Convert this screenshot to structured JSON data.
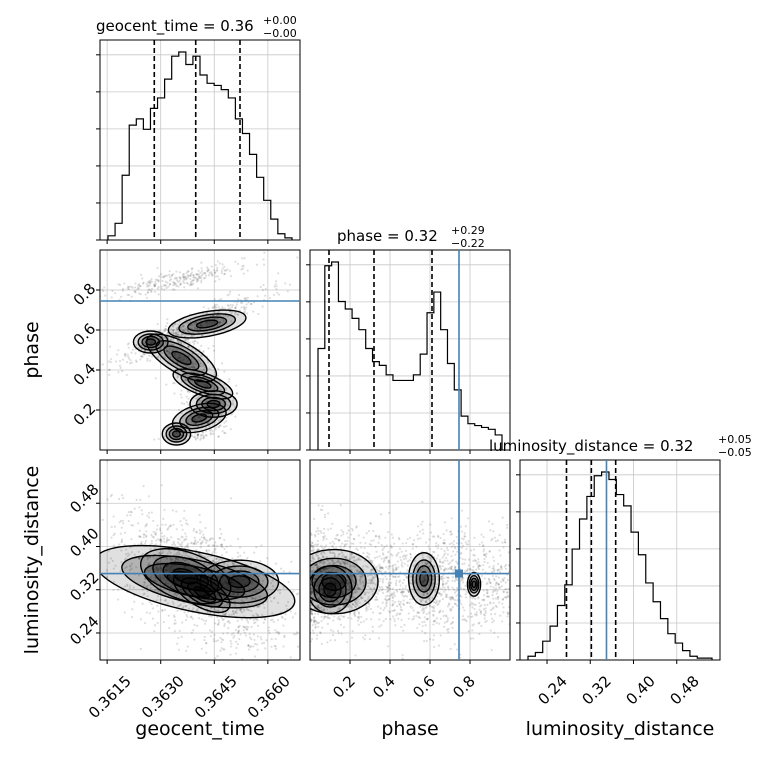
{
  "chart_data": {
    "type": "corner",
    "parameters": [
      "geocent_time",
      "phase",
      "luminosity_distance"
    ],
    "axis_labels": {
      "geocent_time": "geocent_time",
      "phase": "phase",
      "luminosity_distance": "luminosity_distance"
    },
    "titles": {
      "geocent_time": {
        "name": "geocent_time",
        "median": "0.36",
        "plus": "+0.00",
        "minus": "−0.00"
      },
      "phase": {
        "name": "phase",
        "median": "0.32",
        "plus": "+0.29",
        "minus": "−0.22"
      },
      "luminosity_distance": {
        "name": "luminosity_distance",
        "median": "0.32",
        "plus": "+0.05",
        "minus": "−0.05"
      }
    },
    "ranges": {
      "geocent_time": [
        0.3613,
        0.3669
      ],
      "phase": [
        0.0,
        1.0
      ],
      "luminosity_distance": [
        0.19,
        0.56
      ]
    },
    "ticks": {
      "geocent_time": [
        "0.3615",
        "0.3630",
        "0.3645",
        "0.3660"
      ],
      "phase": [
        "0.2",
        "0.4",
        "0.6",
        "0.8"
      ],
      "luminosity_distance": [
        "0.24",
        "0.32",
        "0.40",
        "0.48"
      ]
    },
    "truths": {
      "geocent_time": null,
      "phase": 0.745,
      "luminosity_distance": 0.35
    },
    "quantiles": {
      "geocent_time": [
        0.36282,
        0.36398,
        0.36522
      ],
      "phase": [
        0.095,
        0.32,
        0.61
      ],
      "luminosity_distance": [
        0.276,
        0.322,
        0.367
      ]
    },
    "histograms": {
      "geocent_time": [
        0.02,
        0.08,
        0.31,
        0.55,
        0.58,
        0.53,
        0.63,
        0.68,
        0.77,
        0.88,
        0.9,
        0.84,
        0.88,
        0.79,
        0.75,
        0.74,
        0.72,
        0.68,
        0.58,
        0.51,
        0.41,
        0.3,
        0.19,
        0.1,
        0.03,
        0.01
      ],
      "phase": [
        0.54,
        0.98,
        1.0,
        0.79,
        0.75,
        0.7,
        0.64,
        0.54,
        0.47,
        0.45,
        0.4,
        0.37,
        0.37,
        0.37,
        0.4,
        0.51,
        0.73,
        0.84,
        0.64,
        0.46,
        0.32,
        0.18,
        0.14,
        0.13,
        0.12,
        0.11,
        0.08
      ],
      "luminosity_distance": [
        0.02,
        0.04,
        0.1,
        0.18,
        0.29,
        0.4,
        0.59,
        0.75,
        0.87,
        0.98,
        1.0,
        0.96,
        0.88,
        0.82,
        0.68,
        0.56,
        0.41,
        0.31,
        0.22,
        0.14,
        0.09,
        0.05,
        0.02,
        0.01,
        0.01
      ]
    },
    "grid": true
  }
}
